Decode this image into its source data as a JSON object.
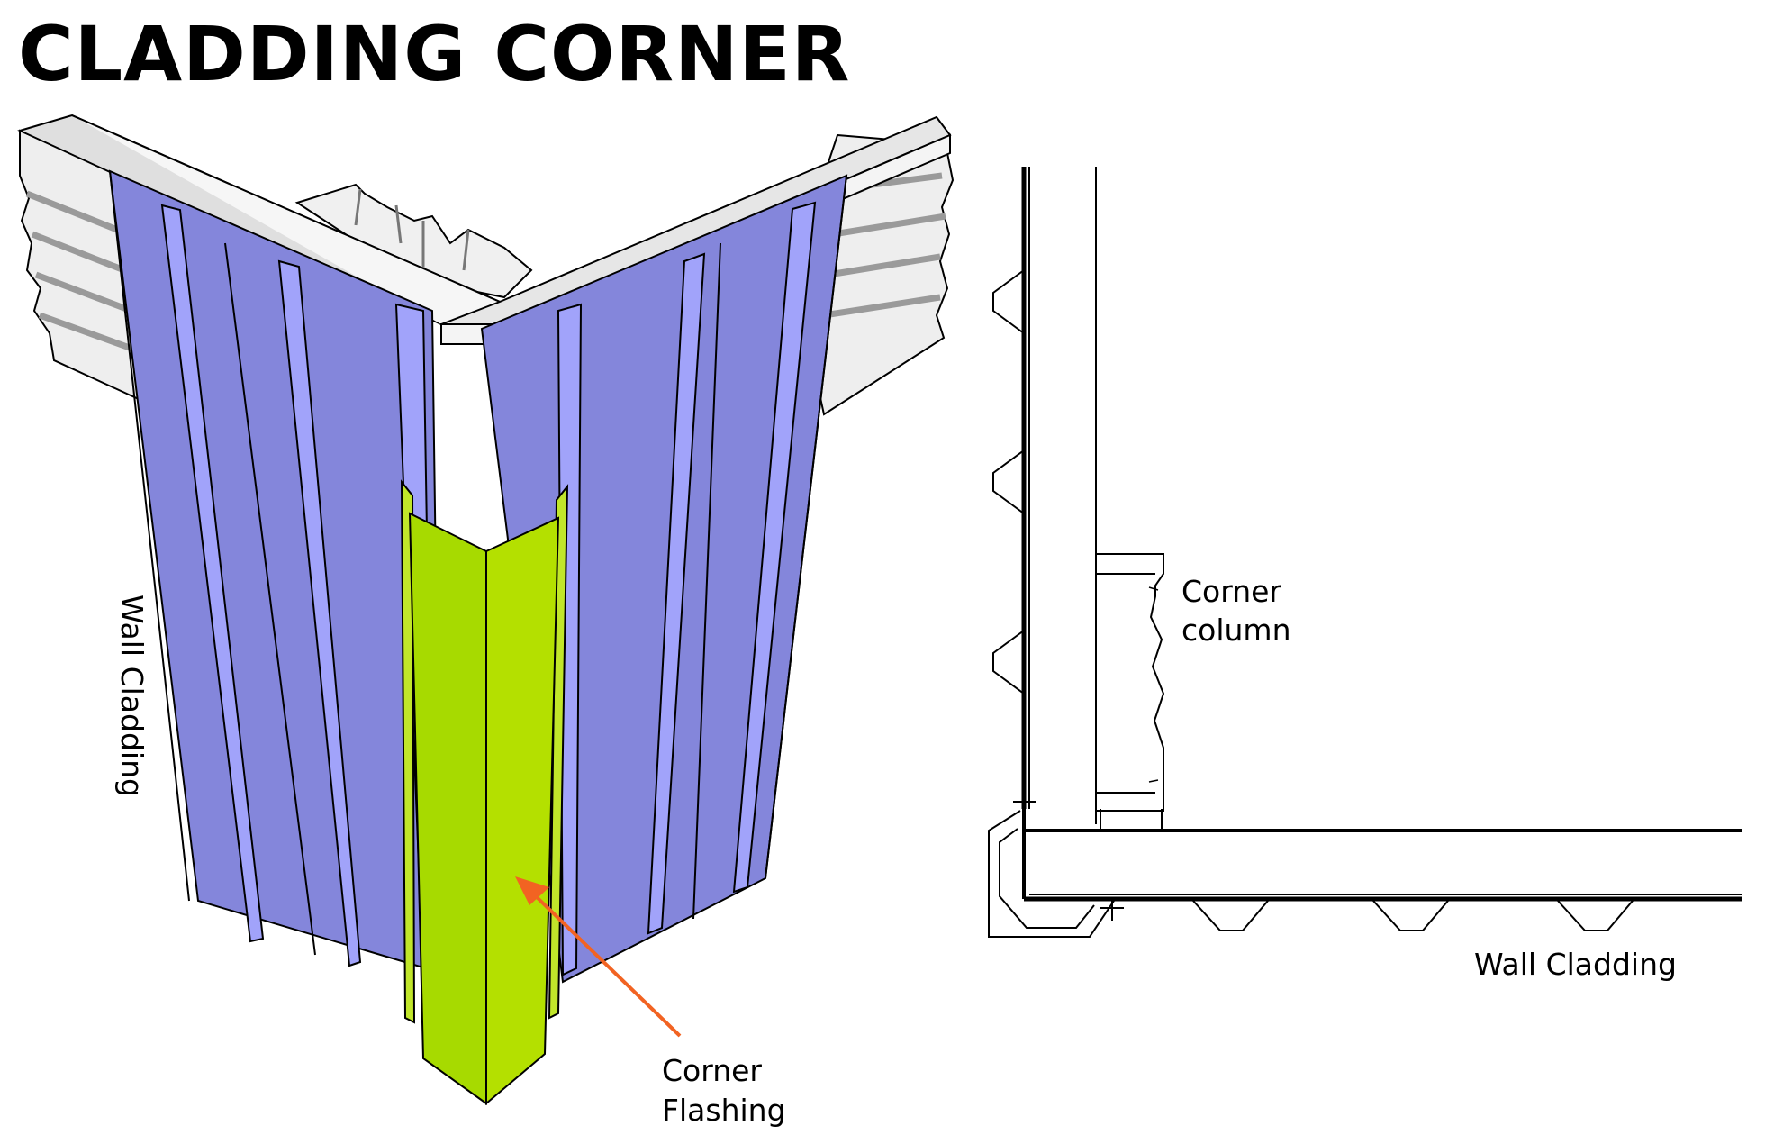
{
  "title": "CLADDING CORNER",
  "labels": {
    "wall_cladding_vertical": "Wall Cladding",
    "corner_flashing": [
      "Corner",
      "Flashing"
    ],
    "corner_column": [
      "Corner",
      "column"
    ],
    "wall_cladding_plan": "Wall Cladding"
  },
  "colors": {
    "cladding_dark": "#8486db",
    "cladding_light": "#a1a3fa",
    "flashing": "#a7da00",
    "flashing_shade": "#c1e62a",
    "frame": "#dfdfdf",
    "frame_light": "#f6f6f6",
    "arrow": "#f26322",
    "line": "#000000"
  }
}
